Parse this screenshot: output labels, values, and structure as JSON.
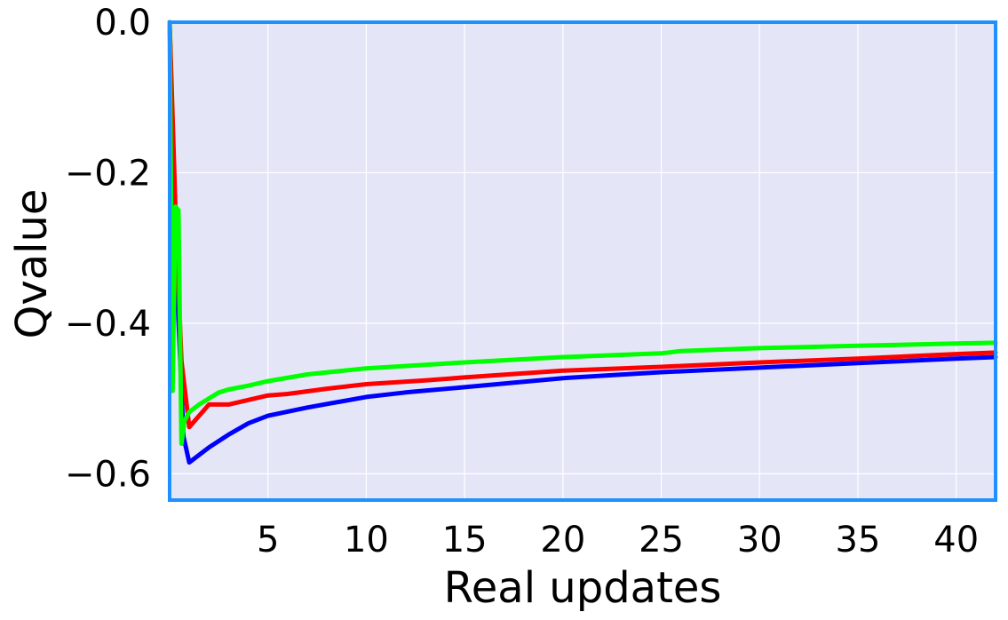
{
  "chart_data": {
    "type": "line",
    "title": "",
    "xlabel": "Real updates",
    "ylabel": "Qvalue",
    "xlim": [
      0,
      42
    ],
    "ylim": [
      -0.635,
      0.0
    ],
    "xticks": [
      5,
      10,
      15,
      20,
      25,
      30,
      35,
      40
    ],
    "xtick_labels": [
      "5",
      "10",
      "15",
      "20",
      "25",
      "30",
      "35",
      "40"
    ],
    "yticks": [
      0.0,
      -0.2,
      -0.4,
      -0.6
    ],
    "ytick_labels": [
      "0.0",
      "−0.2",
      "−0.4",
      "−0.6"
    ],
    "grid": true,
    "legend": "none",
    "colors": {
      "background": "#e4e6f8",
      "frame": "#1e90ff",
      "grid": "#ffffff"
    },
    "series": [
      {
        "color": "#0000ff",
        "x": [
          0,
          0.3,
          0.7,
          1.0,
          2,
          3,
          4,
          5,
          7,
          10,
          12,
          15,
          20,
          25,
          30,
          35,
          40,
          42
        ],
        "y": [
          0.0,
          -0.3,
          -0.55,
          -0.585,
          -0.565,
          -0.548,
          -0.533,
          -0.523,
          -0.512,
          -0.498,
          -0.492,
          -0.485,
          -0.473,
          -0.465,
          -0.459,
          -0.453,
          -0.447,
          -0.445
        ]
      },
      {
        "color": "#ff0000",
        "x": [
          0,
          0.3,
          0.6,
          1.0,
          2,
          3,
          4,
          5,
          6,
          8,
          10,
          13,
          15,
          20,
          23,
          25,
          30,
          35,
          40,
          42
        ],
        "y": [
          0.0,
          -0.25,
          -0.45,
          -0.538,
          -0.508,
          -0.508,
          -0.502,
          -0.496,
          -0.494,
          -0.487,
          -0.481,
          -0.476,
          -0.472,
          -0.463,
          -0.46,
          -0.458,
          -0.452,
          -0.447,
          -0.441,
          -0.439
        ]
      },
      {
        "color": "#00ff00",
        "x": [
          0,
          0.15,
          0.3,
          0.45,
          0.6,
          0.75,
          1.0,
          1.5,
          2,
          2.5,
          3,
          4,
          5,
          7,
          10,
          15,
          20,
          25,
          26,
          30,
          35,
          40,
          42
        ],
        "y": [
          0.0,
          -0.49,
          -0.245,
          -0.25,
          -0.56,
          -0.53,
          -0.518,
          -0.508,
          -0.5,
          -0.492,
          -0.488,
          -0.483,
          -0.477,
          -0.468,
          -0.46,
          -0.452,
          -0.445,
          -0.44,
          -0.437,
          -0.433,
          -0.43,
          -0.427,
          -0.426
        ]
      }
    ]
  }
}
